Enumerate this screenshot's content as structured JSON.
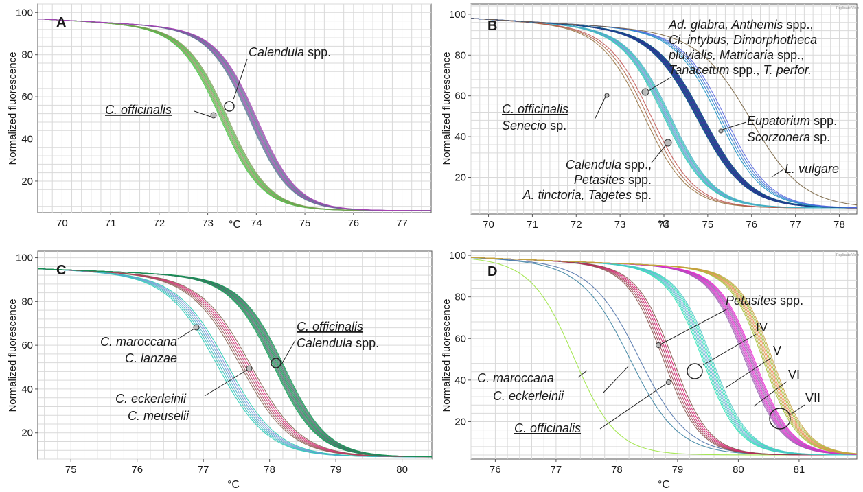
{
  "chart_data": [
    {
      "panel": "A",
      "type": "line",
      "xlabel": "°C",
      "ylabel": "Normalized fluorescence",
      "xlim": [
        69.5,
        77.6
      ],
      "ylim": [
        5,
        104
      ],
      "xticks": [
        70,
        71,
        72,
        73,
        74,
        75,
        76,
        77
      ],
      "yticks": [
        20,
        40,
        60,
        80,
        100
      ],
      "grid": true,
      "series": [
        {
          "tm": 73.35,
          "width": 0.43,
          "start": 97,
          "color": "#6aa84f",
          "count": 9
        },
        {
          "tm": 73.95,
          "width": 0.42,
          "start": 97,
          "color": "#7a5fa0",
          "count": 10
        }
      ],
      "labels": [
        {
          "text": "Calendula",
          "rest": " spp.",
          "italic_head": true,
          "underline": false
        },
        {
          "text": "C. officinalis",
          "rest": "",
          "italic_head": true,
          "underline": true
        }
      ],
      "markers": [
        {
          "x": 73.15,
          "y": 54.5
        },
        {
          "x": 73.47,
          "y": 59
        }
      ]
    },
    {
      "panel": "B",
      "type": "line",
      "xlabel": "°C",
      "ylabel": "Normalized fluorescence",
      "xlim": [
        69.6,
        78.4
      ],
      "ylim": [
        2,
        105
      ],
      "xticks": [
        70,
        71,
        72,
        73,
        74,
        75,
        76,
        77,
        78
      ],
      "yticks": [
        20,
        40,
        60,
        80,
        100
      ],
      "grid": true,
      "corner_text": "Replicate View",
      "series": [
        {
          "tm": 73.65,
          "width": 0.5,
          "start": 98,
          "color": "#c0504d",
          "count": 3
        },
        {
          "tm": 74.1,
          "width": 0.5,
          "start": 98,
          "color": "#4bacc6",
          "count": 8
        },
        {
          "tm": 74.85,
          "width": 0.55,
          "start": 98,
          "color": "#1f3f8f",
          "count": 16
        },
        {
          "tm": 75.35,
          "width": 0.5,
          "start": 98,
          "color": "#3b6fd4",
          "count": 4
        },
        {
          "tm": 76.0,
          "width": 0.6,
          "start": 98,
          "color": "#a0404f",
          "count": 1
        }
      ],
      "labels": [
        {
          "text": "Ad. glabra, Anthemis",
          "rest": " spp.,"
        },
        {
          "text": "Ci. intybus, Dimorphotheca",
          "rest": ""
        },
        {
          "text": "pluvialis, Matricaria",
          "rest": " spp.,"
        },
        {
          "text": "Tanacetum",
          "rest": " spp., "
        },
        {
          "text": "T. perfor.",
          "rest": ""
        },
        {
          "text": "C. officinalis",
          "rest": ""
        },
        {
          "text": "Senecio",
          "rest": " sp."
        },
        {
          "text": "Eupatorium",
          "rest": " spp."
        },
        {
          "text": "Scorzonera",
          "rest": " sp."
        },
        {
          "text": "Calendula",
          "rest": " spp.,"
        },
        {
          "text": "Petasites",
          "rest": " spp."
        },
        {
          "text": "A. tinctoria, Tagetes",
          "rest": " sp."
        },
        {
          "text": "L. vulgare",
          "rest": ""
        }
      ],
      "markers": [
        {
          "x": 72.75,
          "y": 63.5
        },
        {
          "x": 73.6,
          "y": 65
        },
        {
          "x": 74.1,
          "y": 39.5
        },
        {
          "x": 75.3,
          "y": 35.5
        }
      ]
    },
    {
      "panel": "C",
      "type": "line",
      "xlabel": "°C",
      "ylabel": "Normalized fluorescence",
      "xlim": [
        74.5,
        80.45
      ],
      "ylim": [
        8,
        103
      ],
      "xticks": [
        75,
        76,
        77,
        78,
        79,
        80
      ],
      "yticks": [
        20,
        40,
        60,
        80,
        100
      ],
      "grid": true,
      "series": [
        {
          "tm": 77.3,
          "width": 0.38,
          "start": 95,
          "color": "#4bacc6",
          "count": 6
        },
        {
          "tm": 77.65,
          "width": 0.38,
          "start": 95,
          "color": "#b04060",
          "count": 6
        },
        {
          "tm": 78.15,
          "width": 0.33,
          "start": 95,
          "color": "#2f7f5f",
          "count": 12
        }
      ],
      "labels": [
        {
          "text": "C. officinalis",
          "rest": ""
        },
        {
          "text": "Calendula",
          "rest": " spp."
        },
        {
          "text": "C. maroccana",
          "rest": ""
        },
        {
          "text": "C. lanzae",
          "rest": ""
        },
        {
          "text": "C. eckerleinii",
          "rest": ""
        },
        {
          "text": "C. meuselii",
          "rest": ""
        }
      ],
      "markers": [
        {
          "x": 76.88,
          "y": 69.5
        },
        {
          "x": 77.72,
          "y": 50.5
        },
        {
          "x": 78.1,
          "y": 53
        }
      ]
    },
    {
      "panel": "D",
      "type": "line",
      "xlabel": "°C",
      "ylabel": "Normalized fluorescence",
      "xlim": [
        75.6,
        81.95
      ],
      "ylim": [
        2,
        102
      ],
      "xticks": [
        76,
        77,
        78,
        79,
        80,
        81
      ],
      "yticks": [
        20,
        40,
        60,
        80,
        100
      ],
      "grid": true,
      "corner_text": "Replicate View",
      "series": [
        {
          "tm": 77.3,
          "width": 0.35,
          "start": 99,
          "color": "#c6c64f",
          "count": 1
        },
        {
          "tm": 78.3,
          "width": 0.4,
          "start": 99,
          "color": "#5d5db0",
          "count": 2
        },
        {
          "tm": 78.85,
          "width": 0.3,
          "start": 99,
          "color": "#b0305a",
          "count": 6
        },
        {
          "tm": 79.5,
          "width": 0.3,
          "start": 99,
          "color": "#4bc6c6",
          "count": 8
        },
        {
          "tm": 80.2,
          "width": 0.3,
          "start": 99,
          "color": "#c040c0",
          "count": 10
        },
        {
          "tm": 80.5,
          "width": 0.28,
          "start": 99,
          "color": "#c8a040",
          "count": 8
        }
      ],
      "labels": [
        {
          "text": "Petasites",
          "rest": " spp."
        },
        {
          "text": "C. maroccana",
          "rest": ""
        },
        {
          "text": "C. eckerleinii",
          "rest": ""
        },
        {
          "text": "C. officinalis",
          "rest": ""
        },
        {
          "text": "IV",
          "rest": ""
        },
        {
          "text": "V",
          "rest": ""
        },
        {
          "text": "VI",
          "rest": ""
        },
        {
          "text": "VII",
          "rest": ""
        }
      ],
      "markers": [
        {
          "x": 78.65,
          "y": 56
        },
        {
          "x": 78.8,
          "y": 38.5
        }
      ]
    }
  ]
}
